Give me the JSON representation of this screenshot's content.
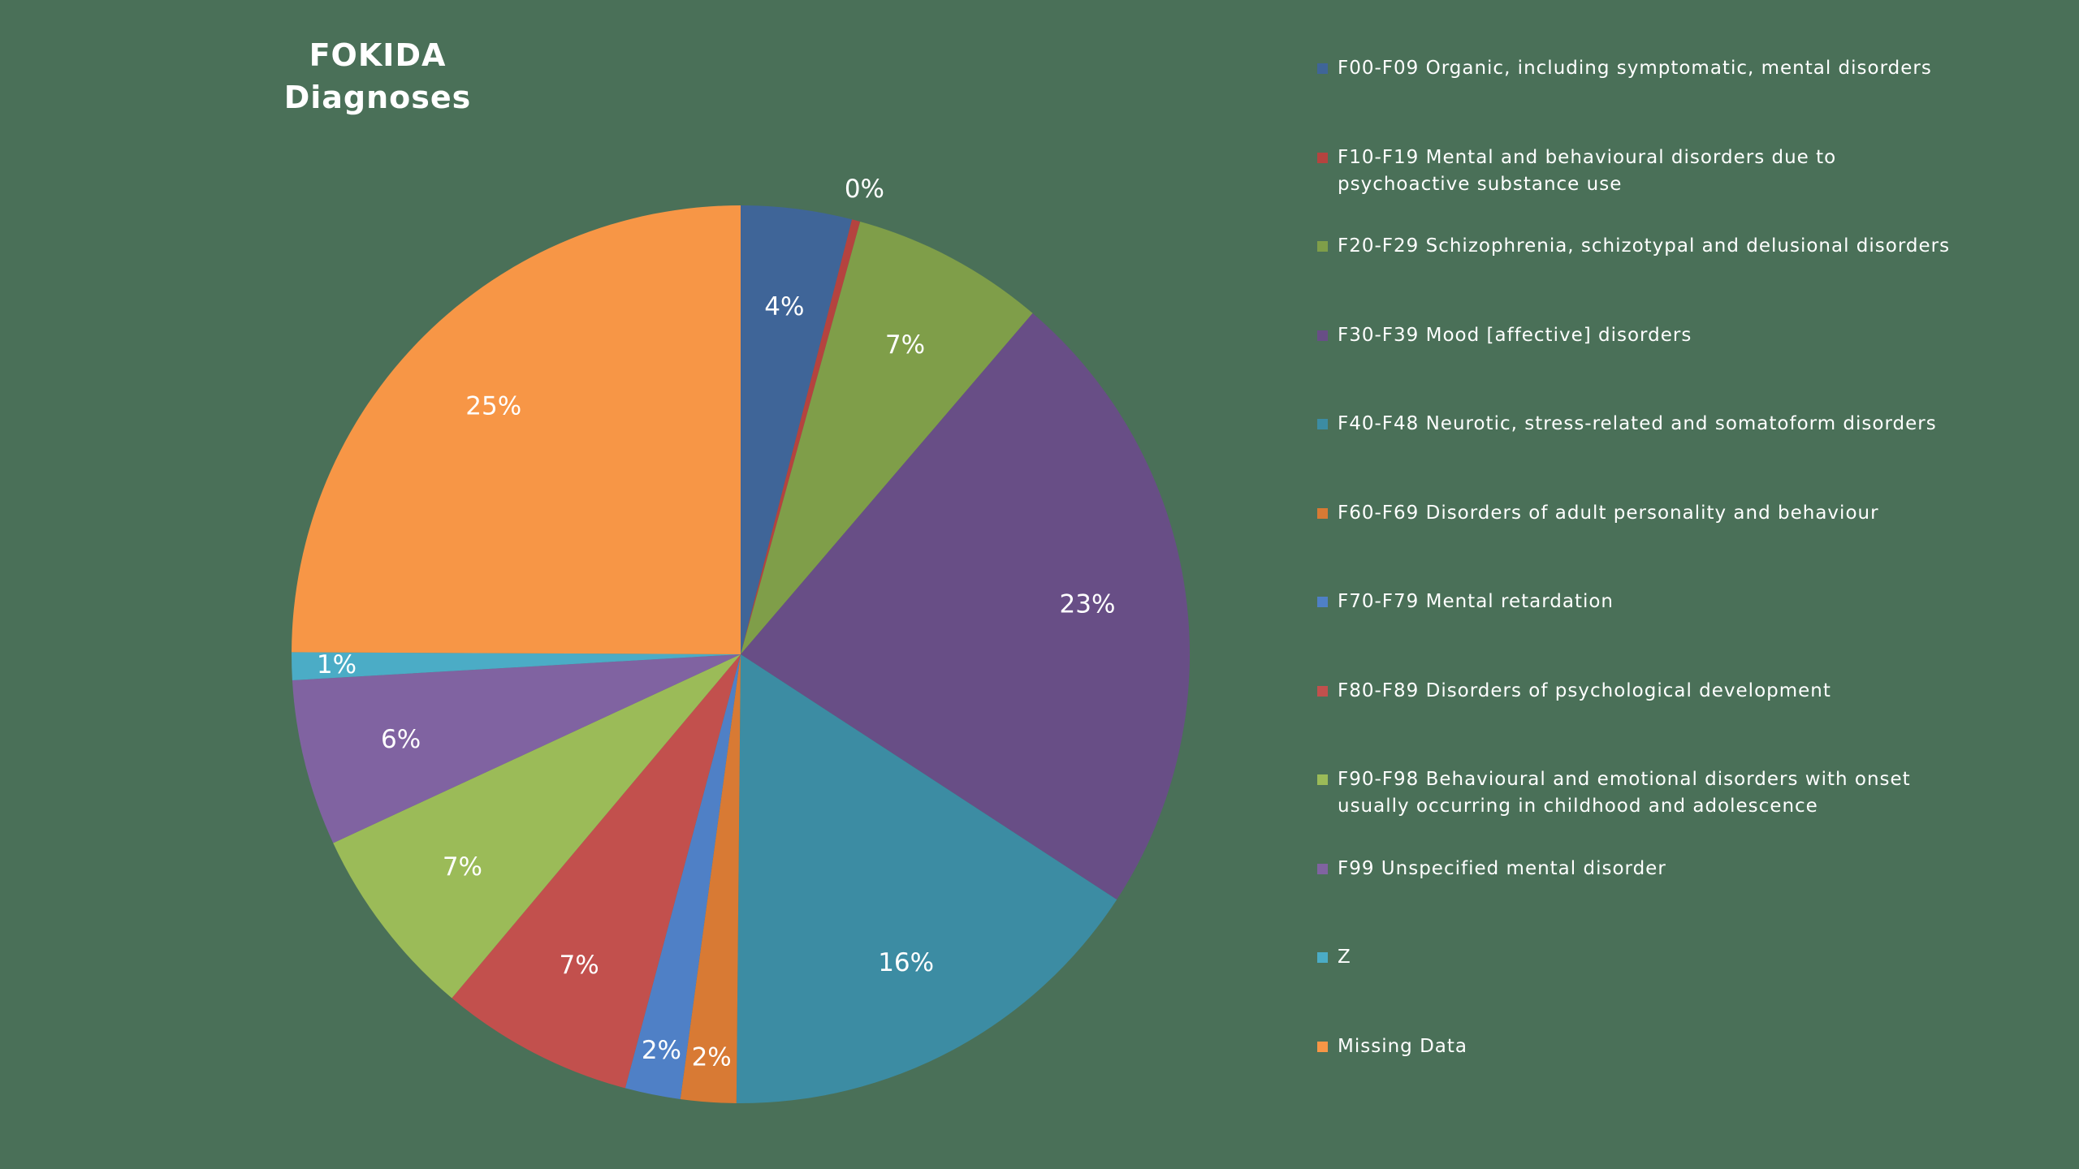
{
  "chart_data": {
    "type": "pie",
    "title_lines": [
      "FOKIDA",
      "Diagnoses"
    ],
    "legend_position": "right",
    "slices": [
      {
        "label": "F00-F09 Organic, including symptomatic, mental disorders",
        "value": 4,
        "display": "4%",
        "color": "#3f6598"
      },
      {
        "label": "F10-F19 Mental and behavioural disorders due to psychoactive substance use",
        "value": 0.3,
        "display": "0%",
        "color": "#b5433f"
      },
      {
        "label": "F20-F29 Schizophrenia, schizotypal and delusional disorders",
        "value": 7,
        "display": "7%",
        "color": "#7f9e49"
      },
      {
        "label": "F30-F39 Mood [affective] disorders",
        "value": 23,
        "display": "23%",
        "color": "#684e86"
      },
      {
        "label": "F40-F48 Neurotic, stress-related and somatoform disorders",
        "value": 16,
        "display": "16%",
        "color": "#3c8ca3"
      },
      {
        "label": "F60-F69 Disorders of adult personality and behaviour",
        "value": 2,
        "display": "2%",
        "color": "#d87a34"
      },
      {
        "label": "F70-F79 Mental retardation",
        "value": 2,
        "display": "2%",
        "color": "#4f80c6"
      },
      {
        "label": "F80-F89 Disorders of psychological development",
        "value": 7,
        "display": "7%",
        "color": "#c2504d"
      },
      {
        "label": "F90-F98 Behavioural and emotional disorders with onset usually occurring in childhood and adolescence",
        "value": 7,
        "display": "7%",
        "color": "#9bbb58"
      },
      {
        "label": "F99 Unspecified mental disorder",
        "value": 6,
        "display": "6%",
        "color": "#8063a1"
      },
      {
        "label": "Z",
        "value": 1,
        "display": "1%",
        "color": "#4bacc6"
      },
      {
        "label": "Missing Data",
        "value": 25,
        "display": "25%",
        "color": "#f79646"
      }
    ]
  }
}
